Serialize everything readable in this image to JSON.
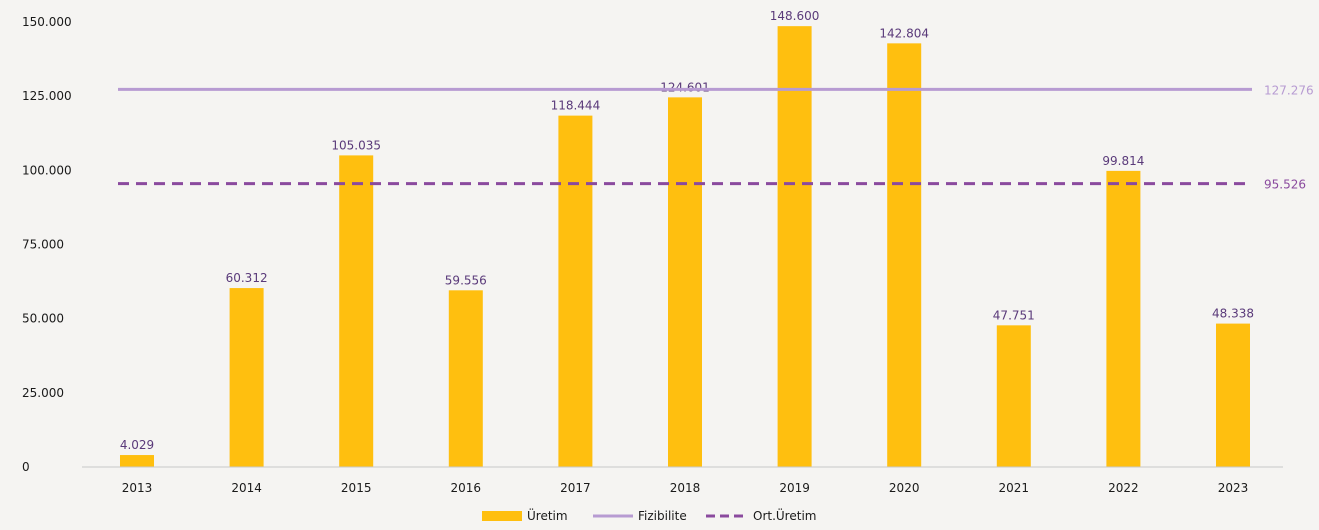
{
  "chart_data": {
    "type": "bar",
    "categories": [
      "2013",
      "2014",
      "2015",
      "2016",
      "2017",
      "2018",
      "2019",
      "2020",
      "2021",
      "2022",
      "2023"
    ],
    "series": [
      {
        "name": "Üretim",
        "type": "bar",
        "values": [
          4029,
          60312,
          105035,
          59556,
          118444,
          124601,
          148600,
          142804,
          47751,
          99814,
          48338
        ],
        "labels": [
          "4.029",
          "60.312",
          "105.035",
          "59.556",
          "118.444",
          "124.601",
          "148.600",
          "142.804",
          "47.751",
          "99.814",
          "48.338"
        ],
        "color": "#ffbf0f"
      },
      {
        "name": "Fizibilite",
        "type": "line",
        "value": 127276,
        "label": "127.276",
        "color": "#b79bd2"
      },
      {
        "name": "Ort.Üretim",
        "type": "line-dashed",
        "value": 95526,
        "label": "95.526",
        "color": "#8a4a9e"
      }
    ],
    "yticks": [
      0,
      25000,
      50000,
      75000,
      100000,
      125000,
      150000
    ],
    "ytick_labels": [
      "0",
      "25.000",
      "50.000",
      "75.000",
      "100.000",
      "125.000",
      "150.000"
    ],
    "ylim": [
      0,
      150000
    ],
    "grid": false,
    "legend_position": "bottom-center"
  }
}
